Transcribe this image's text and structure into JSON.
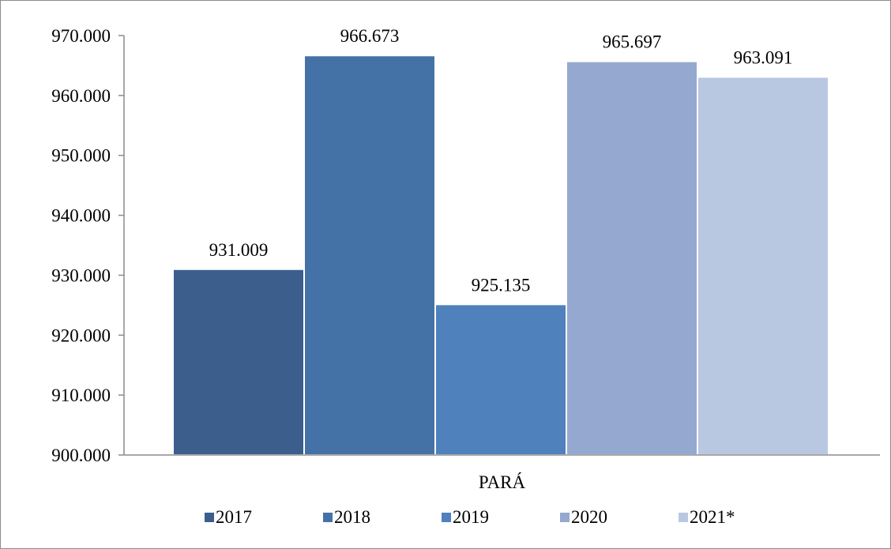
{
  "chart_data": {
    "type": "bar",
    "title": "",
    "xlabel": "",
    "ylabel": "",
    "categories": [
      "PARÁ"
    ],
    "ylim": [
      900000,
      970000
    ],
    "ytick_values": [
      900000,
      910000,
      920000,
      930000,
      940000,
      950000,
      960000,
      970000
    ],
    "ytick_labels": [
      "900.000",
      "910.000",
      "920.000",
      "930.000",
      "940.000",
      "950.000",
      "960.000",
      "970.000"
    ],
    "grid": false,
    "legend_position": "bottom",
    "series": [
      {
        "name": "2017",
        "values": [
          931009
        ],
        "label": "931.009",
        "color": "#3b5e8c"
      },
      {
        "name": "2018",
        "values": [
          966673
        ],
        "label": "966.673",
        "color": "#4472a6"
      },
      {
        "name": "2019",
        "values": [
          925135
        ],
        "label": "925.135",
        "color": "#4f81bd"
      },
      {
        "name": "2020",
        "values": [
          965697
        ],
        "label": "965.697",
        "color": "#95a9d0"
      },
      {
        "name": "2021*",
        "values": [
          963091
        ],
        "label": "963.091",
        "color": "#b9c8e1"
      }
    ]
  }
}
